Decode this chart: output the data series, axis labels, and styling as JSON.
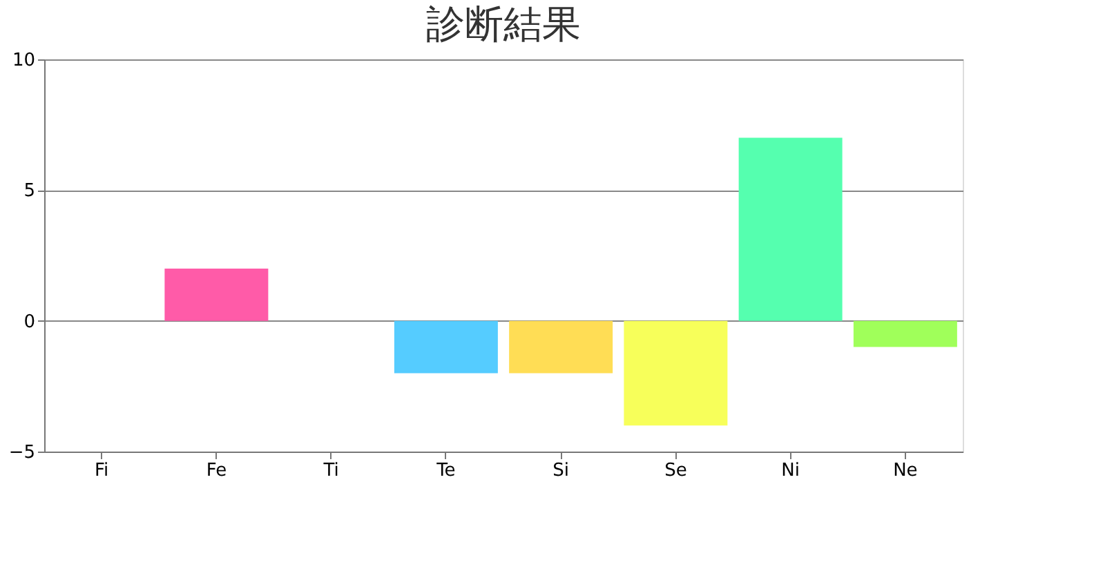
{
  "chart_data": {
    "type": "bar",
    "title": "診断結果",
    "categories": [
      "Fi",
      "Fe",
      "Ti",
      "Te",
      "Si",
      "Se",
      "Ni",
      "Ne"
    ],
    "values": [
      0,
      2,
      0,
      -2,
      -2,
      -4,
      7,
      -1
    ],
    "colors": [
      "#4f81bc",
      "#ff5ba8",
      "#c0504e",
      "#55ccff",
      "#ffdd55",
      "#f7ff5a",
      "#55ffaf",
      "#a0ff5a"
    ],
    "ylim": [
      -5,
      10
    ],
    "yticks": [
      -5,
      0,
      5,
      10
    ],
    "grid": "y"
  }
}
